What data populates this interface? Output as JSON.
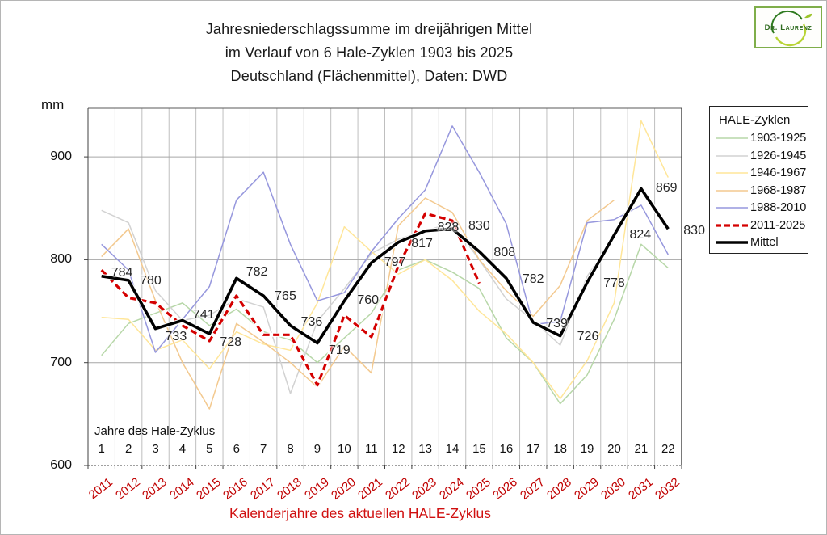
{
  "title": {
    "line1": "Jahresniederschlagssumme im dreijährigen Mittel",
    "line2": "im Verlauf von 6 Hale-Zyklen 1903 bis 2025",
    "line3": "Deutschland (Flächenmittel),  Daten: DWD"
  },
  "logo": {
    "text": "Dr. Laurenz"
  },
  "y_axis": {
    "unit": "mm",
    "ticks": [
      "900",
      "800",
      "700",
      "600"
    ]
  },
  "x_axis": {
    "inner_label": "Jahre des Hale-Zyklus",
    "cycle_years": [
      "1",
      "2",
      "3",
      "4",
      "5",
      "6",
      "7",
      "8",
      "9",
      "10",
      "11",
      "12",
      "13",
      "14",
      "15",
      "16",
      "17",
      "18",
      "19",
      "20",
      "21",
      "22"
    ],
    "calendar_years": [
      "2011",
      "2012",
      "2013",
      "2014",
      "2015",
      "2016",
      "2017",
      "2018",
      "2019",
      "2020",
      "2021",
      "2022",
      "2023",
      "2024",
      "2025",
      "2026",
      "2027",
      "2028",
      "2029",
      "2030",
      "2031",
      "2032"
    ],
    "title": "Kalenderjahre des aktuellen HALE-Zyklus"
  },
  "legend": {
    "title": "HALE-Zyklen",
    "entries": [
      {
        "label": "1903-1925",
        "color": "#b7d7a8",
        "width": 1.5,
        "dash": ""
      },
      {
        "label": "1926-1945",
        "color": "#d2d2d2",
        "width": 1.5,
        "dash": ""
      },
      {
        "label": "1946-1967",
        "color": "#ffe699",
        "width": 1.5,
        "dash": ""
      },
      {
        "label": "1968-1987",
        "color": "#f3c98f",
        "width": 1.5,
        "dash": ""
      },
      {
        "label": "1988-2010",
        "color": "#9697dd",
        "width": 1.5,
        "dash": ""
      },
      {
        "label": "2011-2025",
        "color": "#d40000",
        "width": 3.2,
        "dash": "7 4"
      },
      {
        "label": "Mittel",
        "color": "#000000",
        "width": 3.6,
        "dash": ""
      }
    ]
  },
  "chart_data": {
    "type": "line",
    "title": "Jahresniederschlagssumme im dreijährigen Mittel, 6 Hale-Zyklen 1903-2025, Deutschland (Flächenmittel), Daten: DWD",
    "xlabel": "Kalenderjahre des aktuellen HALE-Zyklus / Jahre des Hale-Zyklus",
    "ylabel": "mm",
    "ylim": [
      600,
      950
    ],
    "grid": true,
    "legend_position": "right",
    "x": [
      1,
      2,
      3,
      4,
      5,
      6,
      7,
      8,
      9,
      10,
      11,
      12,
      13,
      14,
      15,
      16,
      17,
      18,
      19,
      20,
      21,
      22
    ],
    "series": [
      {
        "name": "1903-1925",
        "color": "#b7d7a8",
        "width": 1.5,
        "dash": "",
        "values": [
          707,
          738,
          748,
          758,
          736,
          752,
          730,
          722,
          700,
          724,
          748,
          790,
          800,
          788,
          772,
          724,
          700,
          660,
          688,
          742,
          815,
          792
        ]
      },
      {
        "name": "1926-1945",
        "color": "#d2d2d2",
        "width": 1.5,
        "dash": "",
        "values": [
          848,
          836,
          770,
          741,
          746,
          762,
          754,
          670,
          740,
          772,
          806,
          820,
          828,
          836,
          800,
          762,
          741,
          717,
          784,
          822
        ]
      },
      {
        "name": "1946-1967",
        "color": "#ffe699",
        "width": 1.5,
        "dash": "",
        "values": [
          744,
          742,
          712,
          722,
          694,
          730,
          718,
          712,
          758,
          832,
          808,
          786,
          800,
          780,
          750,
          728,
          700,
          665,
          702,
          758,
          935,
          880
        ]
      },
      {
        "name": "1968-1987",
        "color": "#f3c98f",
        "width": 1.5,
        "dash": "",
        "values": [
          803,
          830,
          760,
          700,
          655,
          738,
          720,
          700,
          676,
          716,
          690,
          833,
          860,
          846,
          800,
          770,
          745,
          775,
          838,
          858
        ]
      },
      {
        "name": "1988-2010",
        "color": "#9697dd",
        "width": 1.5,
        "dash": "",
        "values": [
          815,
          790,
          710,
          742,
          774,
          858,
          885,
          815,
          760,
          768,
          808,
          840,
          868,
          930,
          885,
          835,
          737,
          740,
          836,
          839,
          853,
          805
        ]
      },
      {
        "name": "2011-2025",
        "color": "#d40000",
        "width": 3.2,
        "dash": "8 4.5",
        "values": [
          790,
          763,
          758,
          736,
          721,
          765,
          727,
          727,
          678,
          746,
          725,
          794,
          845,
          838,
          777
        ]
      },
      {
        "name": "Mittel",
        "color": "#000000",
        "width": 3.6,
        "dash": "",
        "values": [
          784,
          780,
          733,
          741,
          728,
          782,
          765,
          736,
          719,
          760,
          797,
          817,
          828,
          830,
          808,
          782,
          739,
          726,
          778,
          824,
          869,
          830
        ]
      }
    ],
    "value_labels_series": "Mittel",
    "value_labels": [
      784,
      780,
      733,
      741,
      728,
      782,
      765,
      736,
      719,
      760,
      797,
      817,
      828,
      830,
      808,
      782,
      739,
      726,
      778,
      824,
      869,
      830
    ]
  }
}
